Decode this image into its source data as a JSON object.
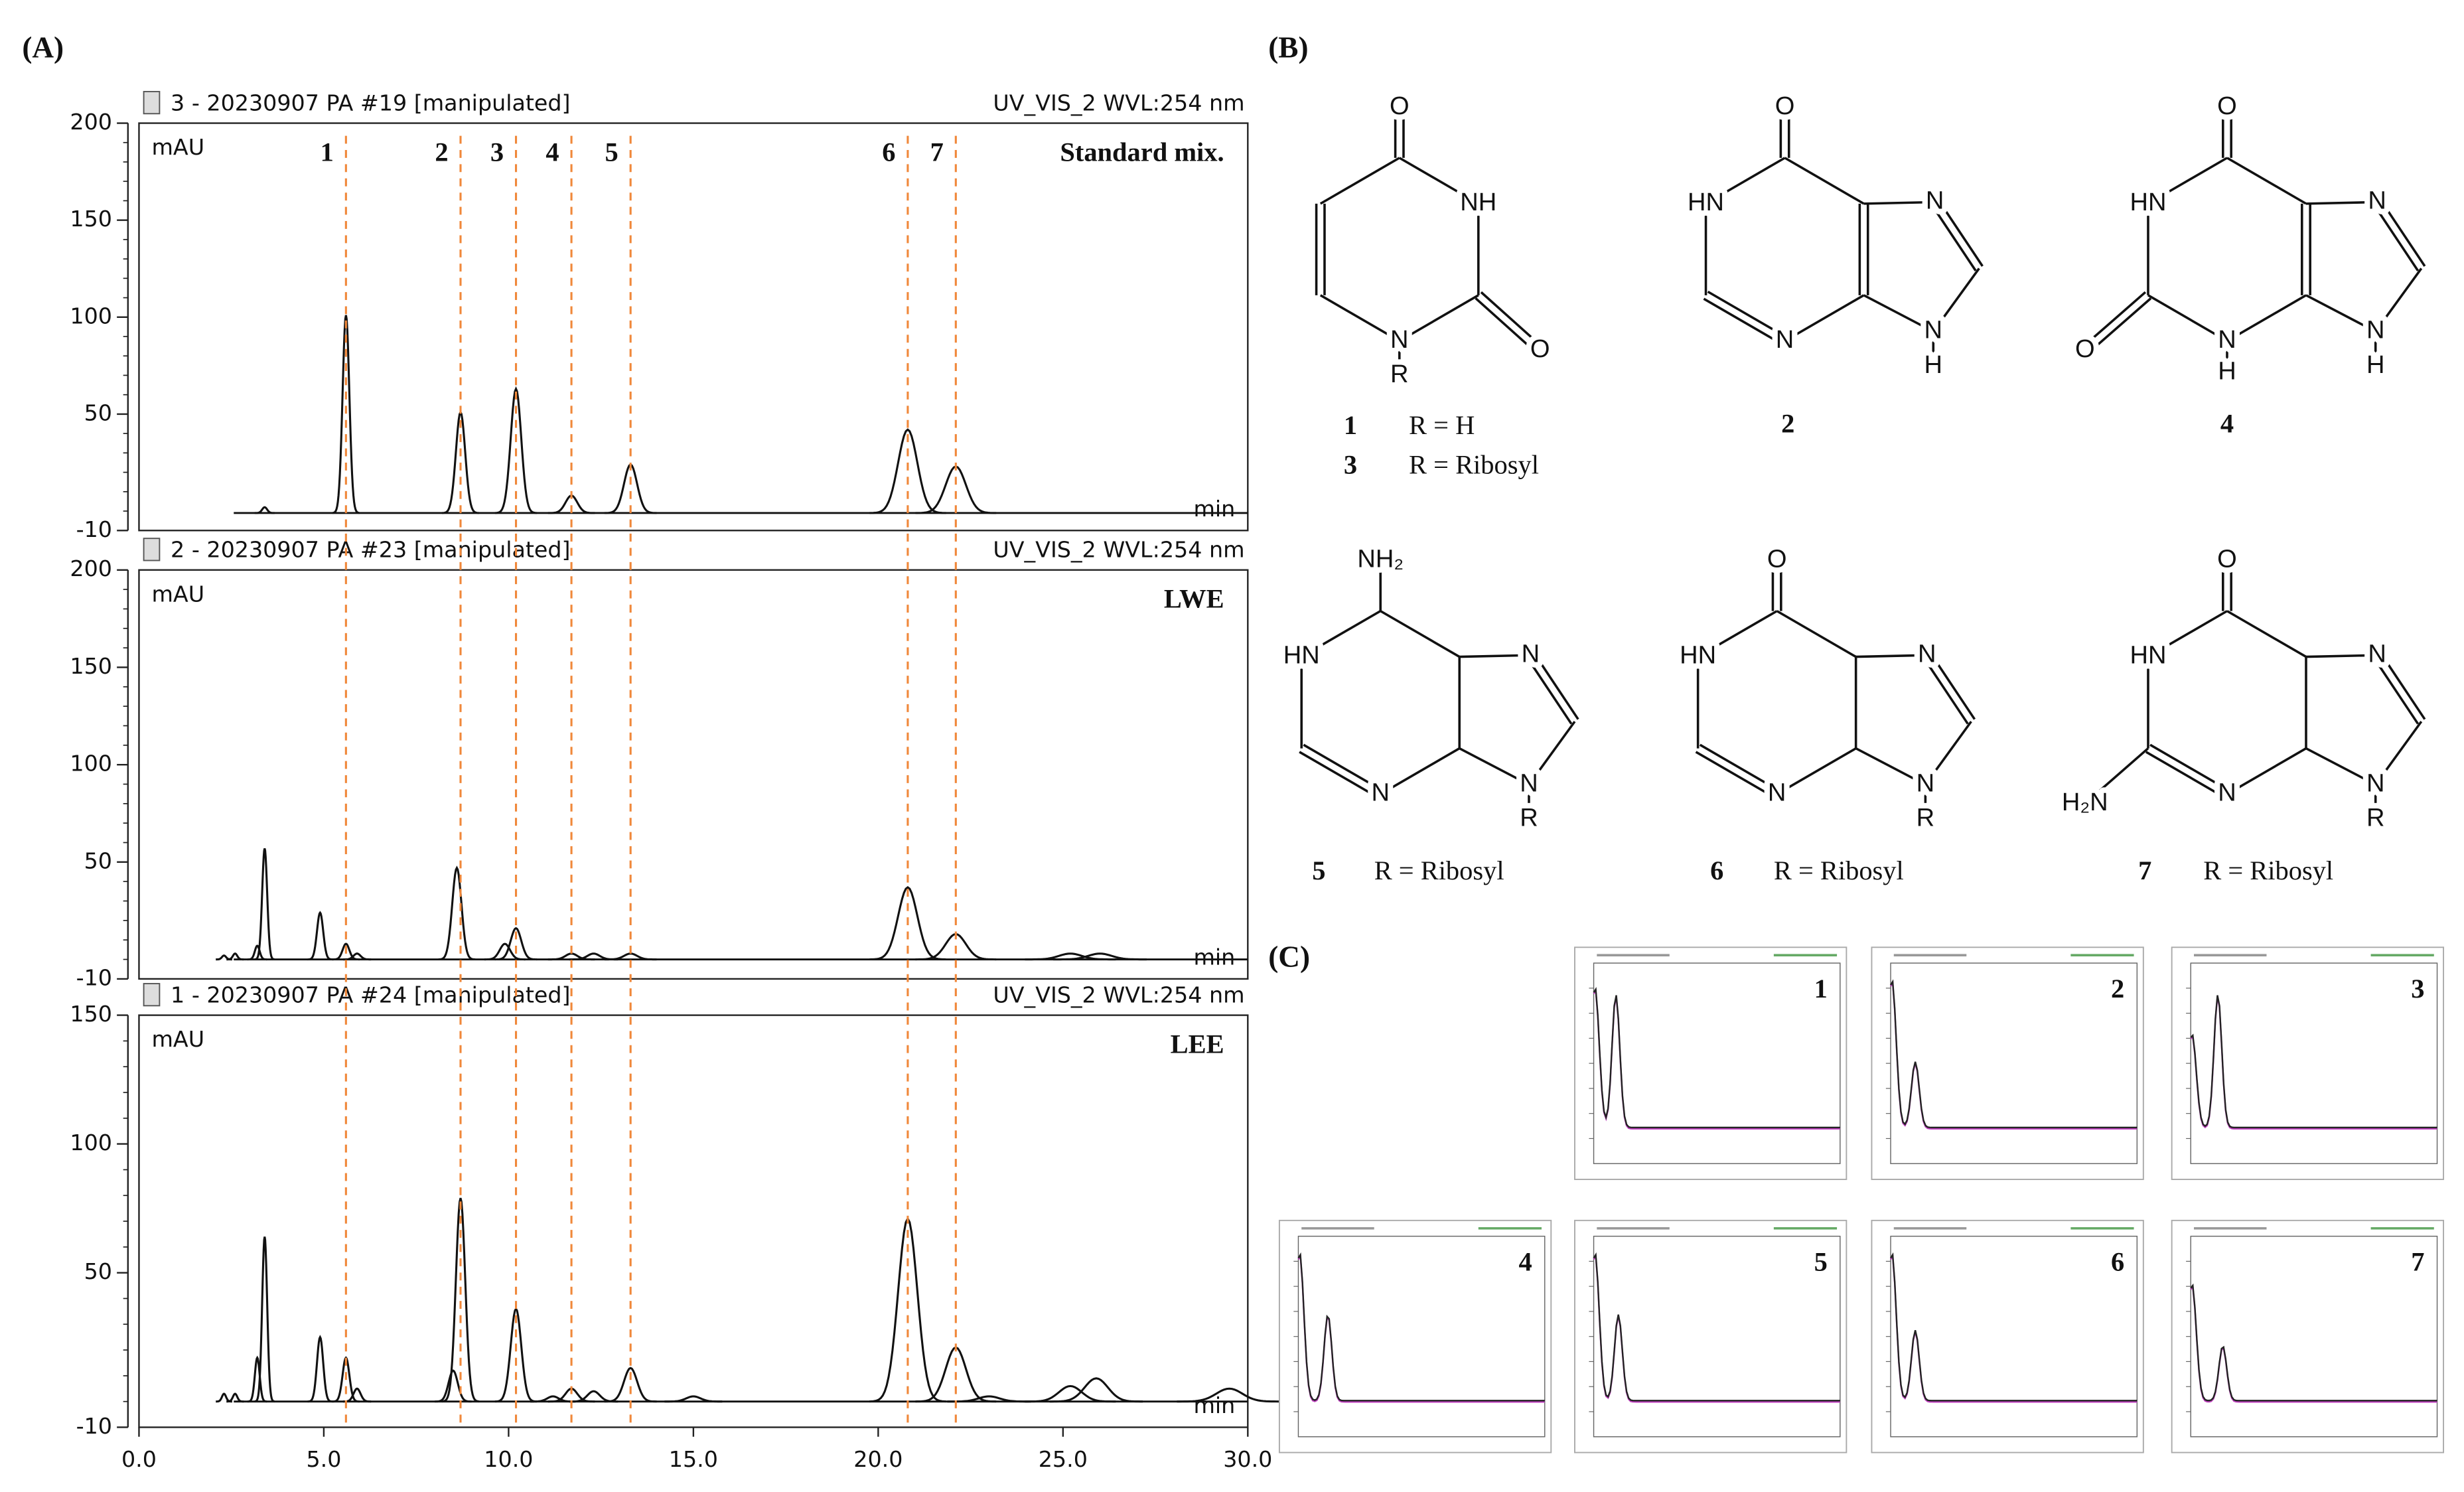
{
  "panel_labels": [
    "(A)",
    "(B)",
    "(C)"
  ],
  "chart_data": [
    {
      "type": "line",
      "title": "3 - 20230907 PA #19 [manipulated]",
      "subtitle": "UV_VIS_2 WVL:254 nm",
      "y_label": "mAU",
      "x_label": "min",
      "annotation": "Standard mix.",
      "xlim": [
        0,
        30
      ],
      "ylim": [
        -10,
        200
      ],
      "yticks": [
        -10,
        50,
        100,
        150,
        200
      ],
      "baseline": -1,
      "peak_labels": [
        "1",
        "2",
        "3",
        "4",
        "5",
        "6",
        "7"
      ],
      "peak_x": [
        5.6,
        8.7,
        10.2,
        11.7,
        13.3,
        20.8,
        22.1
      ],
      "x": [
        3.4,
        5.6,
        8.7,
        10.2,
        11.7,
        13.3,
        20.8,
        22.1
      ],
      "values": [
        2,
        101,
        51,
        63,
        8,
        24,
        42,
        23
      ]
    },
    {
      "type": "line",
      "title": "2 - 20230907 PA #23 [manipulated]",
      "subtitle": "UV_VIS_2 WVL:254 nm",
      "y_label": "mAU",
      "x_label": "min",
      "annotation": "LWE",
      "xlim": [
        0,
        30
      ],
      "ylim": [
        -10,
        200
      ],
      "yticks": [
        -10,
        50,
        100,
        150,
        200
      ],
      "baseline": 0,
      "x": [
        2.3,
        2.6,
        3.2,
        3.4,
        4.9,
        5.6,
        5.9,
        8.6,
        9.9,
        10.2,
        11.7,
        12.3,
        13.3,
        20.8,
        22.1,
        25.2,
        26.0
      ],
      "values": [
        2,
        3,
        7,
        57,
        24,
        8,
        3,
        47,
        8,
        16,
        3,
        3,
        3,
        37,
        13,
        3,
        3
      ]
    },
    {
      "type": "line",
      "title": "1 - 20230907 PA #24 [manipulated]",
      "subtitle": "UV_VIS_2 WVL:254 nm",
      "y_label": "mAU",
      "x_label": "min",
      "annotation": "LEE",
      "xlim": [
        0,
        30
      ],
      "ylim": [
        -10,
        150
      ],
      "yticks": [
        -10,
        50,
        100,
        150
      ],
      "xticks": [
        {
          "value": 0,
          "label": "0.0"
        },
        {
          "value": 5,
          "label": "5.0"
        },
        {
          "value": 10,
          "label": "10.0"
        },
        {
          "value": 15,
          "label": "15.0"
        },
        {
          "value": 20,
          "label": "20.0"
        },
        {
          "value": 25,
          "label": "25.0"
        },
        {
          "value": 30,
          "label": "30.0"
        }
      ],
      "baseline": 0,
      "x": [
        2.3,
        2.6,
        3.2,
        3.4,
        4.9,
        5.6,
        5.9,
        8.5,
        8.7,
        10.2,
        11.2,
        11.7,
        12.3,
        13.3,
        15.0,
        20.8,
        22.1,
        23.0,
        25.2,
        25.9,
        29.5
      ],
      "values": [
        3,
        3,
        17,
        64,
        25,
        17,
        5,
        12,
        79,
        36,
        2,
        5,
        4,
        13,
        2,
        71,
        21,
        2,
        6,
        9,
        5
      ]
    }
  ],
  "structures": [
    {
      "atoms": [
        "O",
        "NH",
        "O",
        "N",
        "R"
      ],
      "compounds": [
        {
          "number": "1",
          "substituent": "R = H"
        },
        {
          "number": "3",
          "substituent": "R = Ribosyl"
        }
      ]
    },
    {
      "atoms": [
        "O",
        "HN",
        "N",
        "N",
        "N",
        "H"
      ],
      "compounds": [
        {
          "number": "2"
        }
      ]
    },
    {
      "atoms": [
        "O",
        "HN",
        "O",
        "N",
        "H",
        "N",
        "N",
        "H"
      ],
      "compounds": [
        {
          "number": "4"
        }
      ]
    },
    {
      "atoms": [
        "NH₂",
        "HN",
        "N",
        "N",
        "N",
        "R"
      ],
      "compounds": [
        {
          "number": "5",
          "substituent": "R = Ribosyl"
        }
      ]
    },
    {
      "atoms": [
        "O",
        "HN",
        "N",
        "N",
        "N",
        "R"
      ],
      "compounds": [
        {
          "number": "6",
          "substituent": "R = Ribosyl"
        }
      ]
    },
    {
      "atoms": [
        "O",
        "HN",
        "H₂N",
        "N",
        "N",
        "N",
        "R"
      ],
      "compounds": [
        {
          "number": "7",
          "substituent": "R = Ribosyl"
        }
      ]
    }
  ],
  "spectra": {
    "labels": [
      "1",
      "2",
      "3",
      "4",
      "5",
      "6",
      "7"
    ]
  }
}
